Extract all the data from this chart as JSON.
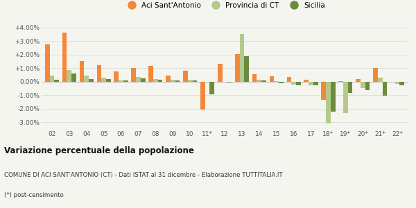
{
  "categories": [
    "02",
    "03",
    "04",
    "05",
    "06",
    "07",
    "08",
    "09",
    "10",
    "11*",
    "12",
    "13",
    "14",
    "15",
    "16",
    "17",
    "18*",
    "19*",
    "20*",
    "21*",
    "22*"
  ],
  "aci": [
    2.75,
    3.65,
    1.55,
    1.2,
    0.75,
    1.0,
    1.15,
    0.45,
    0.82,
    -2.05,
    1.3,
    2.05,
    0.55,
    0.4,
    0.35,
    0.12,
    -1.35,
    0.05,
    0.18,
    1.02,
    -0.02
  ],
  "provincia": [
    0.45,
    0.85,
    0.45,
    0.3,
    0.1,
    0.35,
    0.2,
    0.15,
    0.13,
    -0.05,
    -0.02,
    3.55,
    0.12,
    0.02,
    -0.2,
    -0.25,
    -3.1,
    -2.3,
    -0.45,
    0.28,
    -0.15
  ],
  "sicilia": [
    0.12,
    0.62,
    0.2,
    0.18,
    0.1,
    0.22,
    0.15,
    0.1,
    0.1,
    -0.95,
    -0.05,
    1.88,
    0.08,
    -0.1,
    -0.25,
    -0.25,
    -2.2,
    -0.85,
    -0.65,
    -1.05,
    -0.28
  ],
  "color_aci": "#f4873a",
  "color_provincia": "#b5c98a",
  "color_sicilia": "#6b8c3e",
  "title": "Variazione percentuale della popolazione",
  "subtitle": "COMUNE DI ACI SANT'ANTONIO (CT) - Dati ISTAT al 31 dicembre - Elaborazione TUTTITALIA.IT",
  "footnote": "(*) post-censimento",
  "legend_labels": [
    "Aci Sant'Antonio",
    "Provincia di CT",
    "Sicilia"
  ],
  "ylim": [
    -3.5,
    4.5
  ],
  "yticks": [
    -3.0,
    -2.0,
    -1.0,
    0.0,
    1.0,
    2.0,
    3.0,
    4.0
  ],
  "ytick_labels": [
    "-3.00%",
    "-2.00%",
    "-1.00%",
    "0.00%",
    "+1.00%",
    "+2.00%",
    "+3.00%",
    "+4.00%"
  ],
  "bg_color": "#f5f5f0",
  "grid_color": "#dddddd"
}
